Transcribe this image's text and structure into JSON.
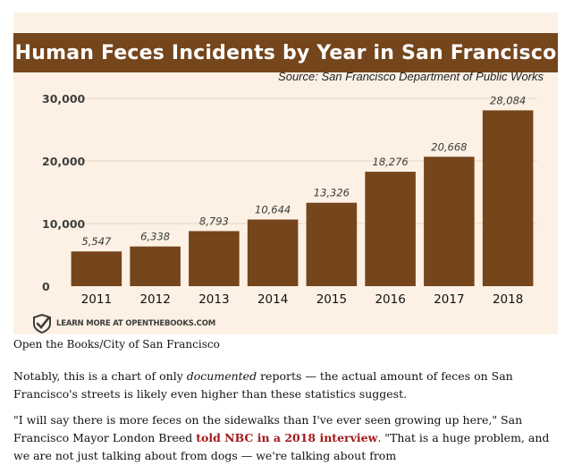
{
  "chart_data": {
    "type": "bar",
    "title": "Human Feces Incidents by Year in San Francisco",
    "subtitle": "Source: San Francisco Department of Public Works",
    "categories": [
      "2011",
      "2012",
      "2013",
      "2014",
      "2015",
      "2016",
      "2017",
      "2018"
    ],
    "values": [
      5547,
      6338,
      8793,
      10644,
      13326,
      18276,
      20668,
      28084
    ],
    "value_labels": [
      "5,547",
      "6,338",
      "8,793",
      "10,644",
      "13,326",
      "18,276",
      "20,668",
      "28,084"
    ],
    "yticks": [
      0,
      10000,
      20000,
      30000
    ],
    "ytick_labels": [
      "0",
      "10,000",
      "20,000",
      "30,000"
    ],
    "ylim": [
      0,
      30000
    ],
    "grid": true,
    "colors": {
      "bar": "#75451c",
      "title_bar": "#75451c",
      "background": "#fcf1e4"
    }
  },
  "attribution": {
    "text": "LEARN MORE AT OPENTHEBOOKS.COM",
    "icon": "checkmark-badge-icon"
  },
  "caption": "Open the Books/City of San Francisco",
  "paragraph_1": {
    "before": "Notably, this is a chart of only ",
    "emphasis": "documented",
    "after": " reports — the actual amount of feces on San Francisco's streets is likely even higher than these statistics suggest."
  },
  "paragraph_2": {
    "before": "\"I will say there is more feces on the sidewalks than I've ever seen growing up here,\" San Francisco Mayor London Breed ",
    "link": "told NBC in a 2018 interview",
    "after": ". \"That is a huge problem, and we are not just talking about from dogs — we're talking about from"
  }
}
